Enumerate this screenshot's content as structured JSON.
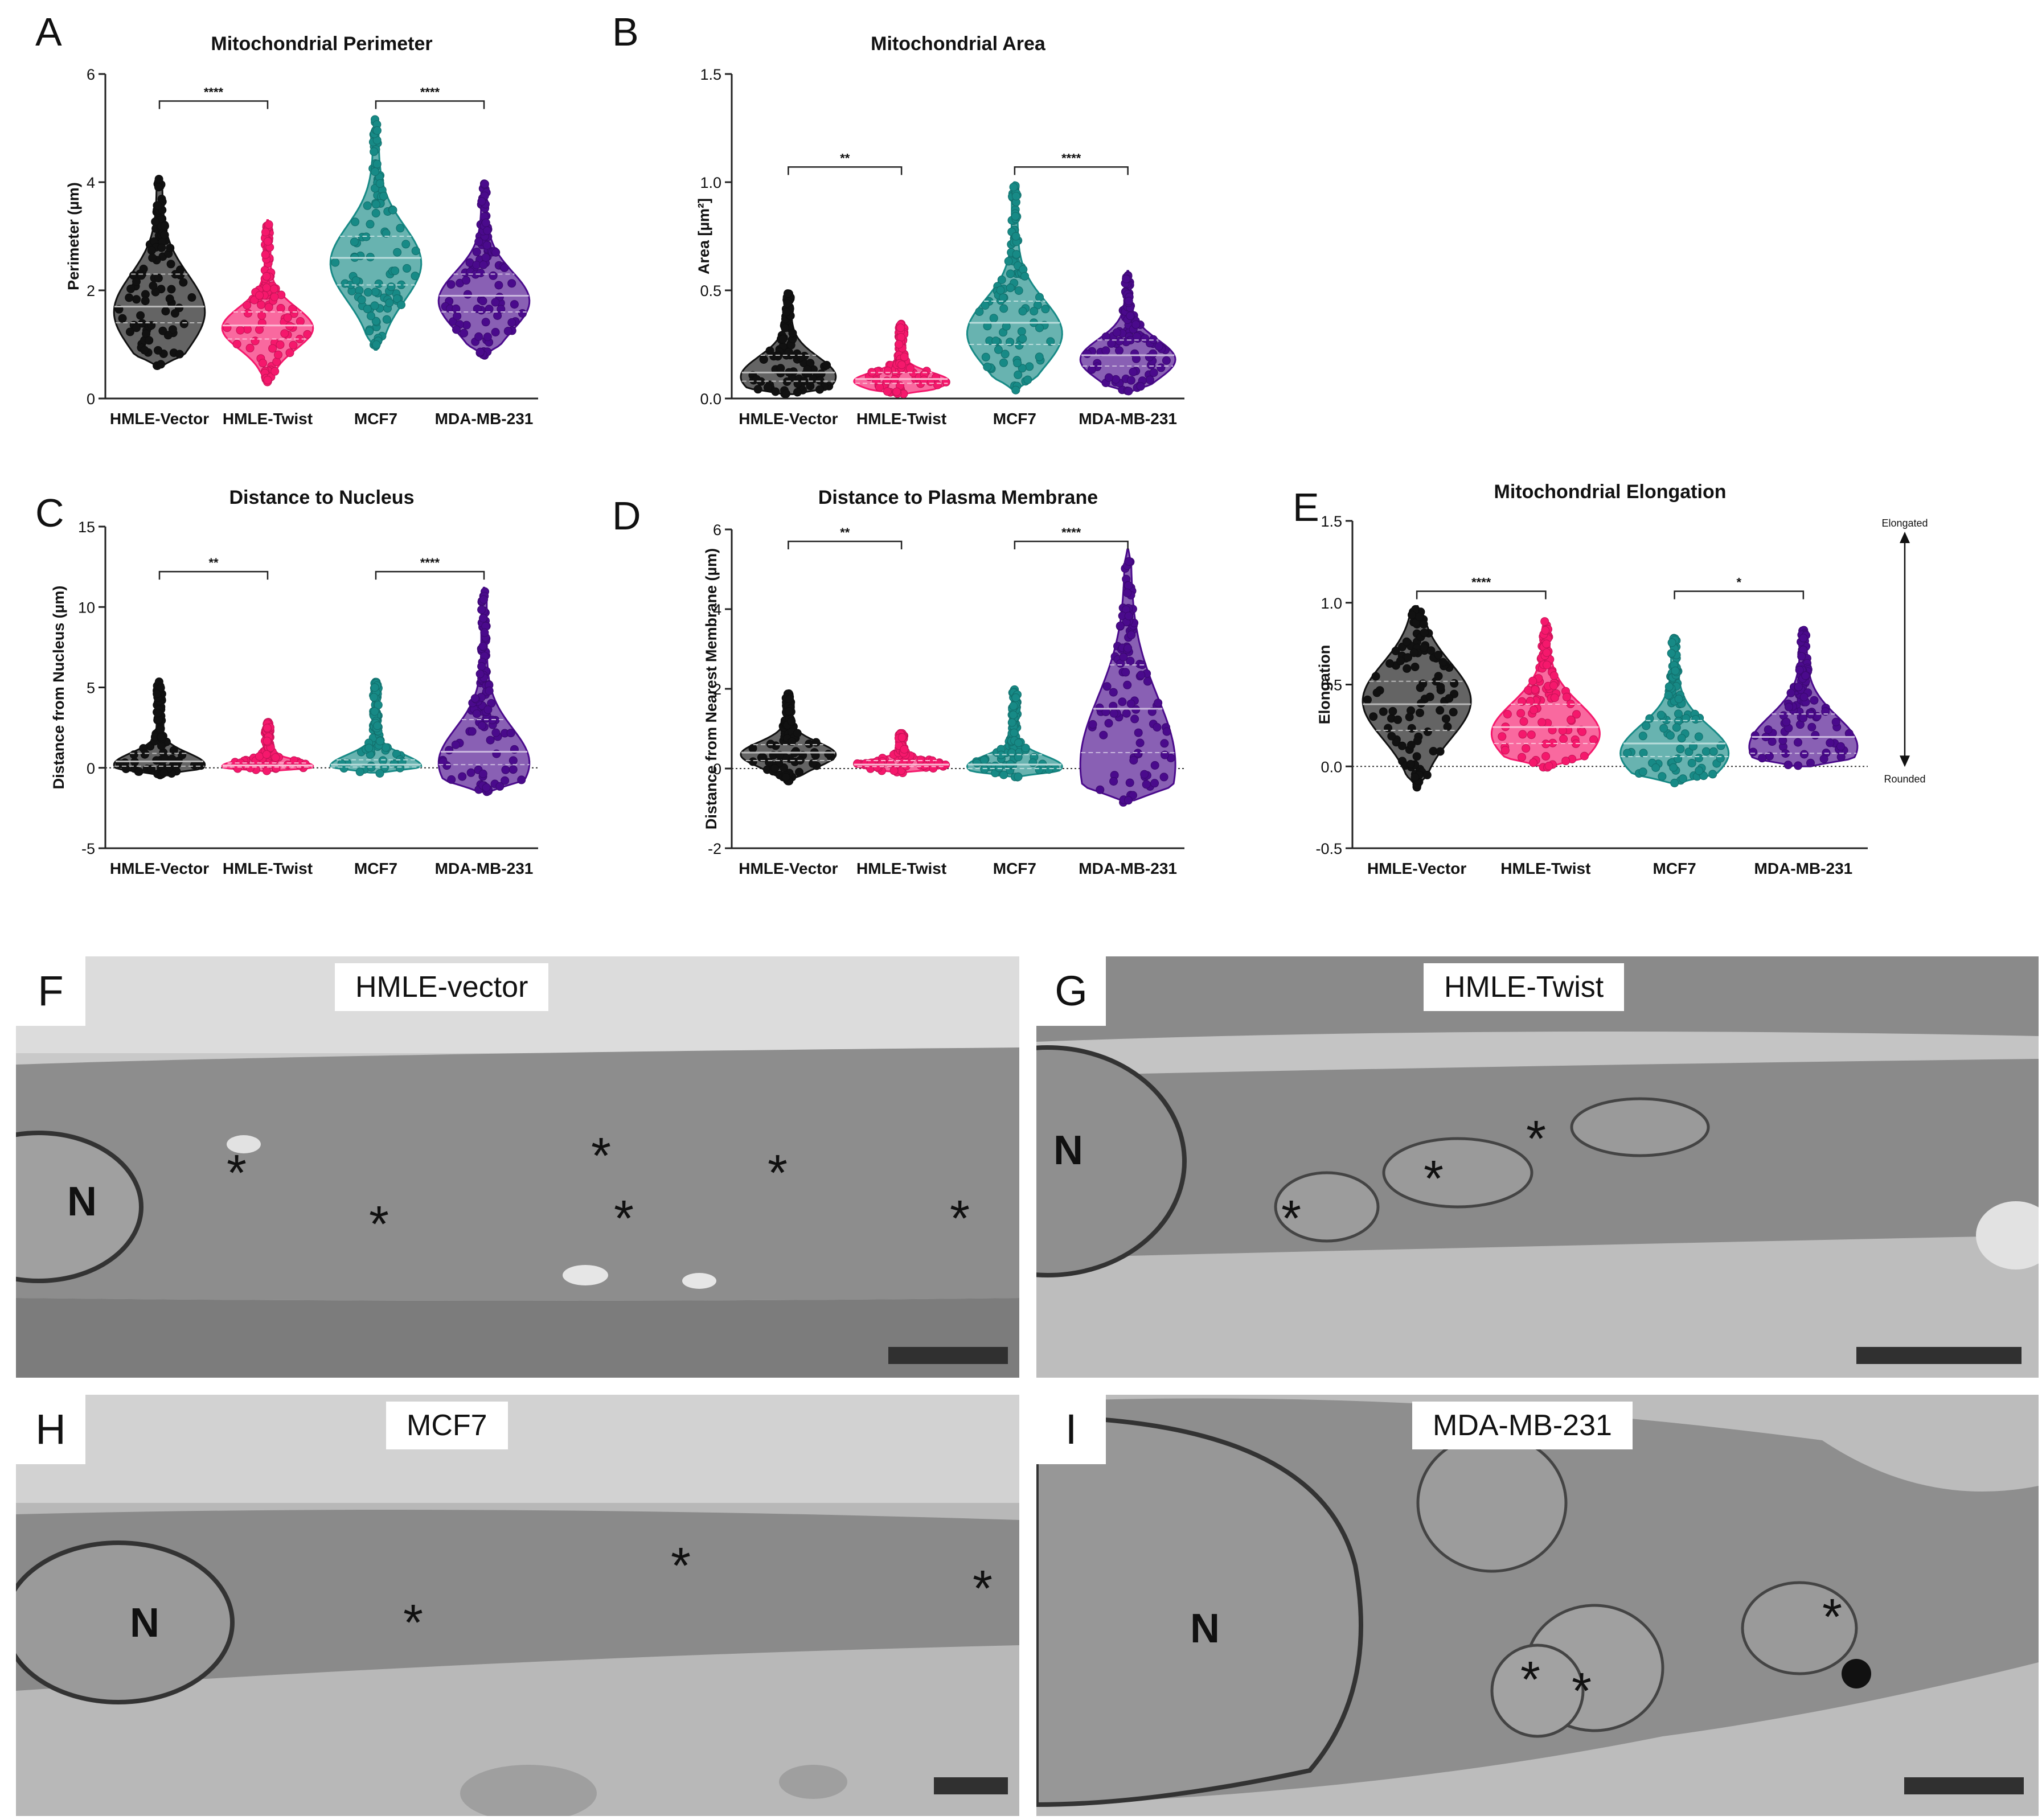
{
  "groups": [
    "HMLE-Vector",
    "HMLE-Twist",
    "MCF7",
    "MDA-MB-231"
  ],
  "colors": {
    "HMLE-Vector": "#111111",
    "HMLE-Twist": "#f5186c",
    "MCF7": "#178a86",
    "MDA-MB-231": "#4a0a8c"
  },
  "chart_data": [
    {
      "panel": "A",
      "type": "violin",
      "title": "Mitochondrial Perimeter",
      "ylabel": "Perimeter (µm)",
      "ylim": [
        0,
        6
      ],
      "yticks": [
        0,
        2,
        4,
        6
      ],
      "categories": [
        "HMLE-Vector",
        "HMLE-Twist",
        "MCF7",
        "MDA-MB-231"
      ],
      "series": [
        {
          "min": 0.6,
          "max": 4.1,
          "q1": 1.4,
          "median": 1.7,
          "q3": 2.3,
          "mode": 1.6
        },
        {
          "min": 0.3,
          "max": 3.3,
          "q1": 1.1,
          "median": 1.35,
          "q3": 1.6,
          "mode": 1.3
        },
        {
          "min": 0.9,
          "max": 5.2,
          "q1": 2.1,
          "median": 2.6,
          "q3": 3.0,
          "mode": 2.5
        },
        {
          "min": 0.8,
          "max": 4.0,
          "q1": 1.6,
          "median": 1.9,
          "q3": 2.3,
          "mode": 1.8
        }
      ],
      "significance": [
        {
          "pair": [
            0,
            1
          ],
          "label": "****",
          "y": 5.5
        },
        {
          "pair": [
            2,
            3
          ],
          "label": "****",
          "y": 5.5
        }
      ],
      "baseline": null
    },
    {
      "panel": "B",
      "type": "violin",
      "title": "Mitochondrial Area",
      "ylabel": "Area [µm²]",
      "ylim": [
        0,
        1.5
      ],
      "yticks": [
        0.0,
        0.5,
        1.0,
        1.5
      ],
      "categories": [
        "HMLE-Vector",
        "HMLE-Twist",
        "MCF7",
        "MDA-MB-231"
      ],
      "series": [
        {
          "min": 0.02,
          "max": 0.49,
          "q1": 0.08,
          "median": 0.12,
          "q3": 0.2,
          "mode": 0.1
        },
        {
          "min": 0.02,
          "max": 0.35,
          "q1": 0.07,
          "median": 0.09,
          "q3": 0.12,
          "mode": 0.08
        },
        {
          "min": 0.04,
          "max": 1.0,
          "q1": 0.25,
          "median": 0.35,
          "q3": 0.45,
          "mode": 0.3
        },
        {
          "min": 0.03,
          "max": 0.59,
          "q1": 0.15,
          "median": 0.2,
          "q3": 0.27,
          "mode": 0.18
        }
      ],
      "significance": [
        {
          "pair": [
            0,
            1
          ],
          "label": "**",
          "y": 1.07
        },
        {
          "pair": [
            2,
            3
          ],
          "label": "****",
          "y": 1.07
        }
      ],
      "baseline": null
    },
    {
      "panel": "C",
      "type": "violin",
      "title": "Distance to Nucleus",
      "ylabel": "Distance from Nucleus (µm)",
      "ylim": [
        -5,
        15
      ],
      "yticks": [
        -5,
        0,
        5,
        10,
        15
      ],
      "categories": [
        "HMLE-Vector",
        "HMLE-Twist",
        "MCF7",
        "MDA-MB-231"
      ],
      "series": [
        {
          "min": -0.4,
          "max": 5.4,
          "q1": 0.1,
          "median": 0.4,
          "q3": 0.9,
          "mode": 0.2
        },
        {
          "min": -0.2,
          "max": 2.9,
          "q1": 0.05,
          "median": 0.15,
          "q3": 0.3,
          "mode": 0.1
        },
        {
          "min": -0.3,
          "max": 5.4,
          "q1": 0.05,
          "median": 0.2,
          "q3": 0.5,
          "mode": 0.1
        },
        {
          "min": -1.5,
          "max": 11.2,
          "q1": 0.2,
          "median": 1.0,
          "q3": 3.0,
          "mode": 0.3
        }
      ],
      "significance": [
        {
          "pair": [
            0,
            1
          ],
          "label": "**",
          "y": 12.2
        },
        {
          "pair": [
            2,
            3
          ],
          "label": "****",
          "y": 12.2
        }
      ],
      "baseline": 0
    },
    {
      "panel": "D",
      "type": "violin",
      "title": "Distance to Plasma Membrane",
      "ylabel": "Distance from Nearest Membrane (µm)",
      "ylim": [
        -2,
        6
      ],
      "yticks": [
        -2,
        0,
        2,
        4,
        6
      ],
      "categories": [
        "HMLE-Vector",
        "HMLE-Twist",
        "MCF7",
        "MDA-MB-231"
      ],
      "series": [
        {
          "min": -0.3,
          "max": 1.9,
          "q1": 0.2,
          "median": 0.4,
          "q3": 0.6,
          "mode": 0.35
        },
        {
          "min": -0.1,
          "max": 0.9,
          "q1": 0.05,
          "median": 0.1,
          "q3": 0.2,
          "mode": 0.1
        },
        {
          "min": -0.2,
          "max": 2.0,
          "q1": 0.0,
          "median": 0.1,
          "q3": 0.35,
          "mode": 0.05
        },
        {
          "min": -0.8,
          "max": 5.5,
          "q1": 0.4,
          "median": 1.5,
          "q3": 2.6,
          "mode": 0.1
        }
      ],
      "significance": [
        {
          "pair": [
            0,
            1
          ],
          "label": "**",
          "y": 5.7
        },
        {
          "pair": [
            2,
            3
          ],
          "label": "****",
          "y": 5.7
        }
      ],
      "baseline": 0
    },
    {
      "panel": "E",
      "type": "violin",
      "title": "Mitochondrial Elongation",
      "ylabel": "Elongation",
      "ylim": [
        -0.5,
        1.5
      ],
      "yticks": [
        -0.5,
        0.0,
        0.5,
        1.0,
        1.5
      ],
      "categories": [
        "HMLE-Vector",
        "HMLE-Twist",
        "MCF7",
        "MDA-MB-231"
      ],
      "series": [
        {
          "min": -0.12,
          "max": 0.98,
          "q1": 0.22,
          "median": 0.38,
          "q3": 0.52,
          "mode": 0.4
        },
        {
          "min": 0.0,
          "max": 0.9,
          "q1": 0.14,
          "median": 0.24,
          "q3": 0.38,
          "mode": 0.2
        },
        {
          "min": -0.1,
          "max": 0.8,
          "q1": 0.06,
          "median": 0.14,
          "q3": 0.28,
          "mode": 0.08
        },
        {
          "min": 0.0,
          "max": 0.84,
          "q1": 0.08,
          "median": 0.18,
          "q3": 0.32,
          "mode": 0.12
        }
      ],
      "significance": [
        {
          "pair": [
            0,
            1
          ],
          "label": "****",
          "y": 1.07
        },
        {
          "pair": [
            2,
            3
          ],
          "label": "*",
          "y": 1.07
        }
      ],
      "baseline": 0,
      "annotations": {
        "top": "Elongated",
        "bottom": "Rounded"
      }
    }
  ],
  "micrographs": [
    {
      "panel": "F",
      "label": "HMLE-vector",
      "nucleus_label": "N",
      "mito_mark": "*"
    },
    {
      "panel": "G",
      "label": "HMLE-Twist",
      "nucleus_label": "N",
      "mito_mark": "*"
    },
    {
      "panel": "H",
      "label": "MCF7",
      "nucleus_label": "N",
      "mito_mark": "*"
    },
    {
      "panel": "I",
      "label": "MDA-MB-231",
      "nucleus_label": "N",
      "mito_mark": "*"
    }
  ]
}
